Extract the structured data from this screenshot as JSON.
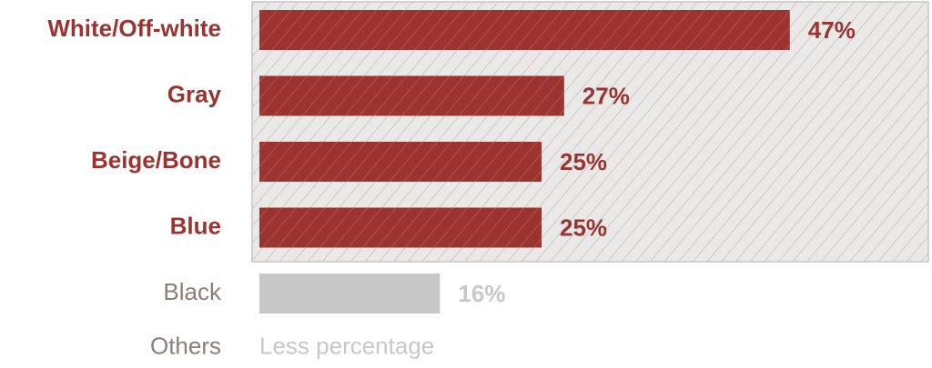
{
  "chart_data": {
    "type": "bar",
    "categories": [
      "White/Off-white",
      "Gray",
      "Beige/Bone",
      "Blue",
      "Black",
      "Others"
    ],
    "values": [
      47,
      27,
      25,
      25,
      16,
      null
    ],
    "value_labels": [
      "47%",
      "27%",
      "25%",
      "25%",
      "16%",
      null
    ],
    "colors": [
      "#9b3430",
      "#9b3430",
      "#9b3430",
      "#9b3430",
      "#c8c8c8",
      null
    ],
    "highlighted": [
      true,
      true,
      true,
      true,
      false,
      false
    ],
    "annotations": [
      null,
      null,
      null,
      null,
      null,
      "Less percentage"
    ]
  }
}
